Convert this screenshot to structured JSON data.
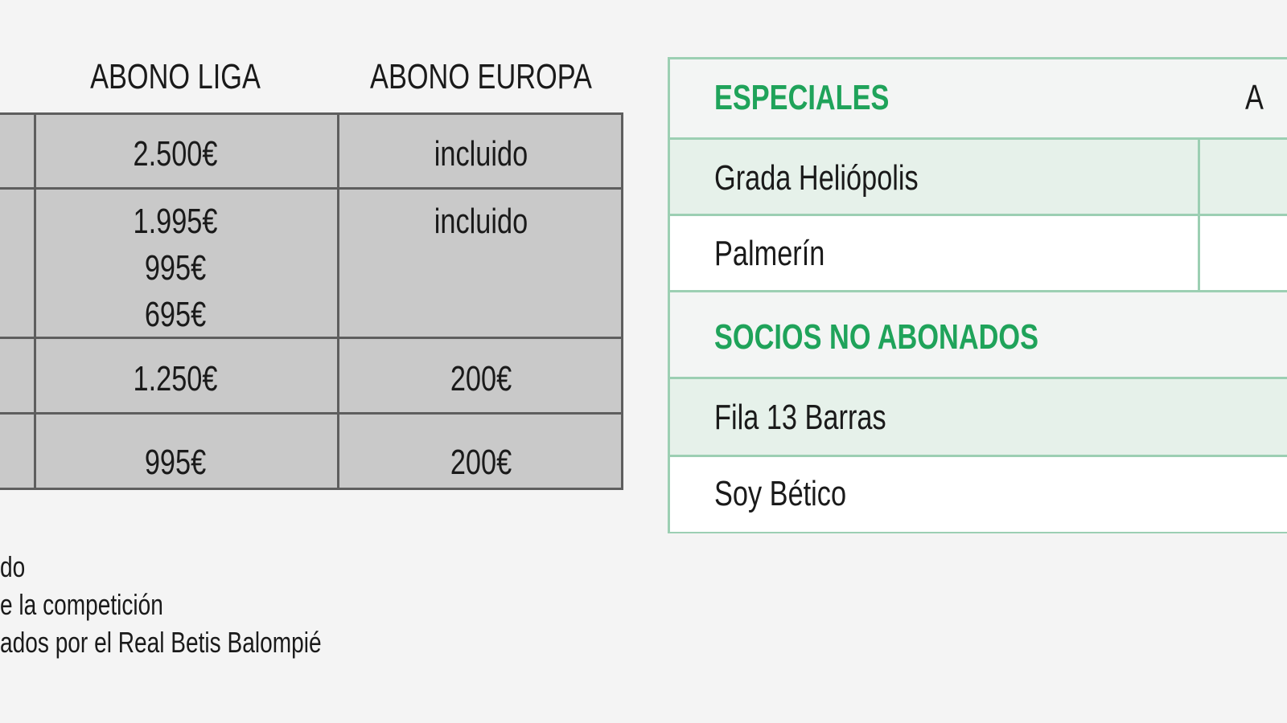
{
  "left_table": {
    "headers": [
      "ABONO LIGA",
      "ABONO EUROPA"
    ],
    "rows": [
      {
        "liga": [
          "2.500€"
        ],
        "europa": "incluido"
      },
      {
        "liga": [
          "1.995€",
          "995€",
          "695€"
        ],
        "europa": "incluido"
      },
      {
        "liga": [
          "1.250€"
        ],
        "europa": "200€"
      },
      {
        "liga": [
          "995€"
        ],
        "europa": "200€"
      }
    ]
  },
  "footnotes": [
    "do",
    "e la competición",
    "ados por el Real Betis Balompié"
  ],
  "right_table": {
    "header_partial": "A",
    "sections": [
      {
        "title": "ESPECIALES",
        "rows": [
          "Grada Heliópolis",
          "Palmerín"
        ]
      },
      {
        "title": "SOCIOS NO ABONADOS",
        "rows": [
          "Fila 13 Barras",
          "Soy Bético"
        ]
      }
    ]
  },
  "colors": {
    "accent": "#1fa35a",
    "grey_cell": "#c9c9c9",
    "light_green_row": "#e6f1ea"
  }
}
